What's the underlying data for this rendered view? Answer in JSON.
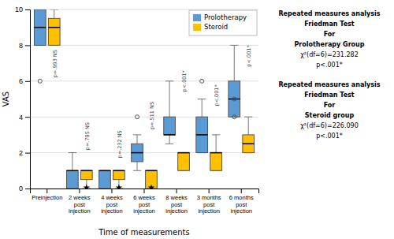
{
  "chart_data": {
    "type": "box",
    "xlabel": "Time of measurements",
    "ylabel": "VAS",
    "categories": [
      "Preinjection",
      "2 weeks\npost\ninjection",
      "4 weeks\npost\ninjection",
      "6 weeks\npost\ninjection",
      "8 weeks\npost\ninjection",
      "3 months\npost\ninjection",
      "6 months\npost\ninjection"
    ],
    "series": [
      {
        "name": "Prolotherapy",
        "color": "#5B9BD5",
        "marker": "circle",
        "q1": [
          8.0,
          0.0,
          0.0,
          1.5,
          3.0,
          2.0,
          4.0
        ],
        "median": [
          9.0,
          1.0,
          1.0,
          2.0,
          3.0,
          3.0,
          5.0
        ],
        "q3": [
          10.0,
          1.0,
          1.0,
          2.5,
          4.0,
          4.0,
          6.0
        ],
        "whisker_low": [
          8.0,
          0.0,
          0.0,
          1.0,
          2.5,
          2.0,
          4.0
        ],
        "whisker_high": [
          10.0,
          2.0,
          1.0,
          3.0,
          6.0,
          5.0,
          8.0
        ],
        "outliers": [
          [
            0,
            6.0
          ],
          [
            3,
            4.0
          ],
          [
            5,
            6.0
          ],
          [
            6,
            5.0
          ],
          [
            6,
            4.0
          ]
        ]
      },
      {
        "name": "Steroid",
        "color": "#FFC000",
        "marker": "star",
        "q1": [
          8.0,
          0.5,
          0.5,
          0.0,
          1.0,
          1.0,
          2.0
        ],
        "median": [
          9.0,
          1.0,
          1.0,
          1.0,
          2.0,
          2.0,
          2.5
        ],
        "q3": [
          9.5,
          1.0,
          1.0,
          1.0,
          2.0,
          2.0,
          3.0
        ],
        "whisker_low": [
          8.0,
          0.0,
          0.0,
          0.0,
          1.0,
          1.0,
          2.0
        ],
        "whisker_high": [
          10.0,
          1.0,
          1.0,
          1.0,
          2.0,
          3.0,
          4.0
        ],
        "outliers": [
          [
            1,
            0.05
          ],
          [
            2,
            0.05
          ],
          [
            3,
            0.05
          ]
        ]
      }
    ],
    "annotations": [
      {
        "text": "p=.993 NS",
        "x": 0,
        "y": 6.2
      },
      {
        "text": "p=.795 NS",
        "x": 1,
        "y": 2.15
      },
      {
        "text": "p=.232 NS",
        "x": 2,
        "y": 1.7
      },
      {
        "text": "p=.511 NS",
        "x": 3,
        "y": 3.3
      },
      {
        "text": "p<.001*",
        "x": 4,
        "y": 5.4
      },
      {
        "text": "p<.001*",
        "x": 5,
        "y": 4.6
      },
      {
        "text": "p<.001*",
        "x": 6,
        "y": 6.8
      }
    ],
    "notes": [
      {
        "heading": [
          "Repeated measures analysis",
          "Friedman Test",
          "For",
          "Prolotherapy Group"
        ],
        "text": [
          "χ²(df=6)=231.282",
          "p<.001*"
        ]
      },
      {
        "heading": [
          "Repeated measures analysis",
          "Friedman Test",
          "For",
          "Steroid group"
        ],
        "text": [
          "χ²(df=6)=226.090",
          "p<.001*"
        ]
      }
    ],
    "ylim": [
      0,
      10
    ],
    "yticks": [
      0,
      2,
      4,
      6,
      8,
      10
    ],
    "grid": true,
    "legend": "upper right"
  }
}
